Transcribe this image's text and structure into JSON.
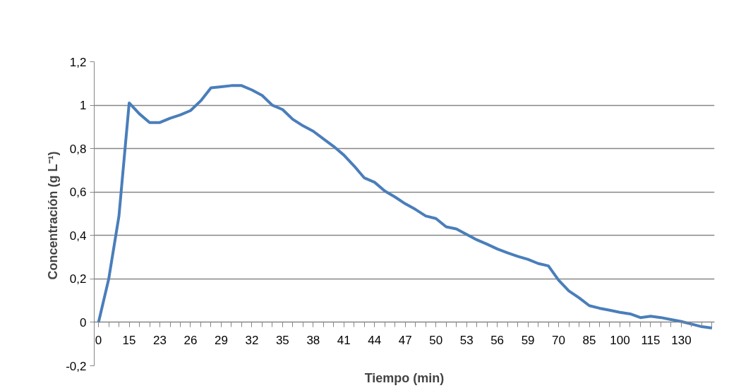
{
  "chart_data": {
    "type": "line",
    "xlabel": "Tiempo (min)",
    "ylabel": "Concentración  (g L⁻¹)",
    "categories": [
      "0",
      null,
      null,
      "15",
      null,
      null,
      "23",
      null,
      null,
      "26",
      null,
      null,
      "29",
      null,
      null,
      "32",
      null,
      null,
      "35",
      null,
      null,
      "38",
      null,
      null,
      "41",
      null,
      null,
      "44",
      null,
      null,
      "47",
      null,
      null,
      "50",
      null,
      null,
      "53",
      null,
      null,
      "56",
      null,
      null,
      "59",
      null,
      null,
      "70",
      null,
      null,
      "85",
      null,
      null,
      "100",
      null,
      null,
      "115",
      null,
      null,
      "130",
      null,
      null,
      null
    ],
    "series": [
      {
        "color": "#4a7ebb",
        "values": [
          0,
          0.2,
          0.49,
          1.01,
          0.96,
          0.92,
          0.92,
          0.94,
          0.955,
          0.975,
          1.02,
          1.08,
          1.085,
          1.09,
          1.09,
          1.07,
          1.045,
          1.0,
          0.98,
          0.935,
          0.905,
          0.88,
          0.845,
          0.81,
          0.77,
          0.72,
          0.665,
          0.645,
          0.605,
          0.577,
          0.546,
          0.52,
          0.49,
          0.478,
          0.44,
          0.43,
          0.405,
          0.38,
          0.36,
          0.338,
          0.32,
          0.304,
          0.29,
          0.271,
          0.26,
          0.194,
          0.145,
          0.113,
          0.077,
          0.065,
          0.056,
          0.046,
          0.039,
          0.022,
          0.028,
          0.022,
          0.013,
          0.004,
          -0.008,
          -0.02,
          -0.026
        ]
      }
    ],
    "ylim": [
      -0.2,
      1.2
    ],
    "yticks": [
      {
        "value": -0.2,
        "label": "-0,2"
      },
      0,
      {
        "value": 0.2,
        "label": "0,2"
      },
      {
        "value": 0.4,
        "label": "0,4"
      },
      {
        "value": 0.6,
        "label": "0,6"
      },
      {
        "value": 0.8,
        "label": "0,8"
      },
      1,
      {
        "value": 1.2,
        "label": "1,2"
      }
    ],
    "grid": "y",
    "marker": "none",
    "line_style": "solid"
  }
}
